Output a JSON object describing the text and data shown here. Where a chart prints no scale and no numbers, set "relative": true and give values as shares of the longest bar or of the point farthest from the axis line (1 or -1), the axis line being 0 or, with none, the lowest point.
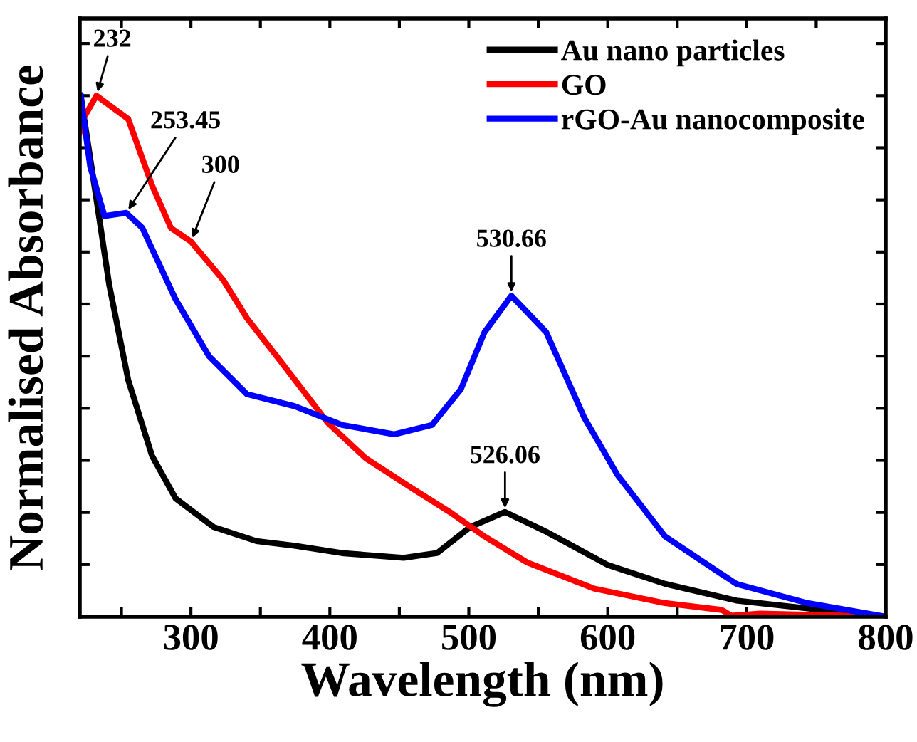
{
  "chart_data": {
    "type": "line",
    "xlabel": "Wavelength (nm)",
    "ylabel": "Normalised Absorbance",
    "relative": true,
    "xlim": [
      220,
      800
    ],
    "xticks": [
      {
        "value": 250,
        "label": null
      },
      300,
      {
        "value": 350,
        "label": null
      },
      400,
      {
        "value": 450,
        "label": null
      },
      500,
      {
        "value": 550,
        "label": null
      },
      600,
      {
        "value": 650,
        "label": null
      },
      700,
      {
        "value": 750,
        "label": null
      },
      800
    ],
    "legend": "top right",
    "grid": false,
    "marker": "none",
    "line_style": "solid",
    "series": [
      {
        "name": "Au nano particles",
        "color": "#000000",
        "x": [
          220.7,
          231,
          241.2,
          254.9,
          272,
          289,
          316.4,
          347.2,
          374.6,
          408.7,
          453.1,
          477.1,
          501,
          526.06,
          555.7,
          600.2,
          641.2,
          692.5,
          743.8,
          800
        ],
        "values": [
          1.0,
          0.819,
          0.637,
          0.454,
          0.309,
          0.227,
          0.172,
          0.145,
          0.136,
          0.122,
          0.113,
          0.122,
          0.172,
          0.201,
          0.163,
          0.099,
          0.063,
          0.031,
          0.016,
          0.0
        ]
      },
      {
        "name": "GO",
        "color": "#ff0000",
        "x": [
          220,
          222.4,
          232,
          254.9,
          272,
          285.6,
          300,
          323.3,
          340.3,
          364.3,
          398.5,
          425.8,
          460,
          487.4,
          511.3,
          542,
          590,
          641.2,
          682,
          689,
          709.6,
          800
        ],
        "values": [
          0.93,
          0.955,
          1.0,
          0.955,
          0.828,
          0.746,
          0.72,
          0.646,
          0.573,
          0.491,
          0.372,
          0.304,
          0.245,
          0.199,
          0.154,
          0.104,
          0.054,
          0.026,
          0.013,
          0.002,
          0.006,
          0.0
        ]
      },
      {
        "name": "rGO-Au nanocomposite",
        "color": "#0000ff",
        "x": [
          220.7,
          227.5,
          237.8,
          253.45,
          265.1,
          289,
          313,
          340.3,
          374.6,
          408.7,
          446.4,
          473.6,
          494.2,
          511.3,
          530.66,
          555.7,
          583.1,
          607,
          641.2,
          692.5,
          743.8,
          800
        ],
        "values": [
          1.0,
          0.864,
          0.769,
          0.775,
          0.746,
          0.609,
          0.5,
          0.427,
          0.404,
          0.368,
          0.35,
          0.368,
          0.436,
          0.546,
          0.616,
          0.546,
          0.382,
          0.272,
          0.154,
          0.063,
          0.026,
          0.0
        ]
      }
    ],
    "annotations": [
      {
        "text": "232",
        "x": 232,
        "y": 1.0
      },
      {
        "text": "253.45",
        "x": 253.45,
        "y": 0.775
      },
      {
        "text": "300",
        "x": 300,
        "y": 0.72
      },
      {
        "text": "530.66",
        "x": 530.66,
        "y": 0.616
      },
      {
        "text": "526.06",
        "x": 526.06,
        "y": 0.201
      }
    ]
  }
}
